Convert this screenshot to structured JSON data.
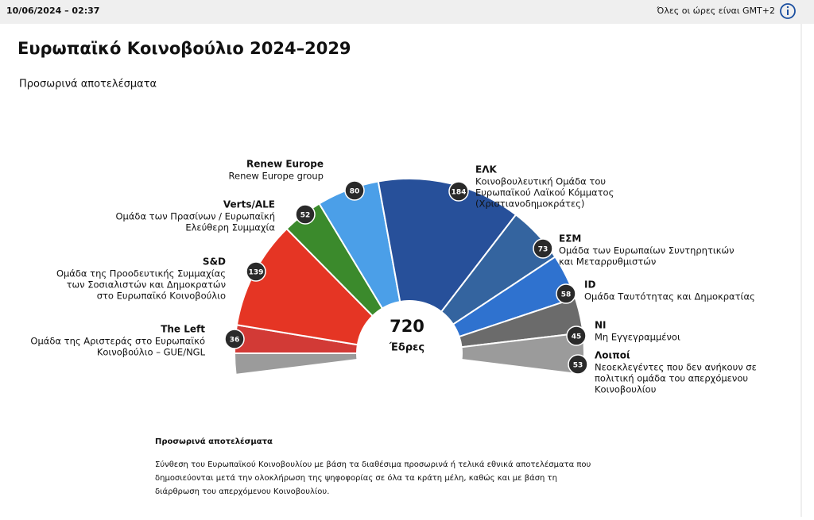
{
  "header": {
    "timestamp": "10/06/2024 – 02:37",
    "timezone": "Όλες οι ώρες είναι GMT+2"
  },
  "chart_data": {
    "type": "hemicycle",
    "title": "Ευρωπαϊκό Κοινοβούλιο 2024–2029",
    "subtitle": "Προσωρινά αποτελέσματα",
    "total": 720,
    "total_label": "Έδρες",
    "categories": [
      "The Left",
      "S&D",
      "Verts/ALE",
      "Renew Europe",
      "ΕΛΚ",
      "ΕΣΜ",
      "ID",
      "NI",
      "Λοιποί"
    ],
    "descriptions": [
      [
        "Ομάδα της Αριστεράς στο Ευρωπαϊκό",
        "Κοινοβούλιο – GUE/NGL"
      ],
      [
        "Ομάδα της Προοδευτικής Συμμαχίας",
        "των Σοσιαλιστών και Δημοκρατών",
        "στο Ευρωπαϊκό Κοινοβούλιο"
      ],
      [
        "Ομάδα των Πρασίνων / Ευρωπαϊκή",
        "Ελεύθερη Συμμαχία"
      ],
      [
        "Renew Europe group"
      ],
      [
        "Κοινοβουλευτική Ομάδα του",
        "Ευρωπαϊκού Λαϊκού Κόμματος",
        "(Χριστιανοδημοκράτες)"
      ],
      [
        "Ομάδα των Ευρωπαίων Συντηρητικών",
        "και Μεταρρυθμιστών"
      ],
      [
        "Ομάδα Ταυτότητας και Δημοκρατίας"
      ],
      [
        "Μη Εγγεγραμμένοι"
      ],
      [
        "Νεοεκλεγέντες που δεν ανήκουν σε",
        "πολιτική ομάδα του απερχόμενου",
        "Κοινοβουλίου"
      ]
    ],
    "values": [
      36,
      139,
      52,
      80,
      184,
      73,
      58,
      45,
      53
    ],
    "colors": [
      "#d23a36",
      "#e53524",
      "#3b8a2c",
      "#4b9fe8",
      "#27509a",
      "#34649f",
      "#2f72cf",
      "#6b6b6b",
      "#9b9b9b"
    ]
  },
  "footer": {
    "title": "Προσωρινά αποτελέσματα",
    "lines": [
      "Σύνθεση του Ευρωπαϊκού Κοινοβουλίου με βάση τα διαθέσιμα προσωρινά ή τελικά εθνικά αποτελέσματα που",
      "δημοσιεύονται μετά την ολοκλήρωση της ψηφοφορίας σε όλα τα κράτη μέλη, καθώς και με βάση τη",
      "διάρθρωση του απερχόμενου Κοινοβουλίου."
    ]
  }
}
